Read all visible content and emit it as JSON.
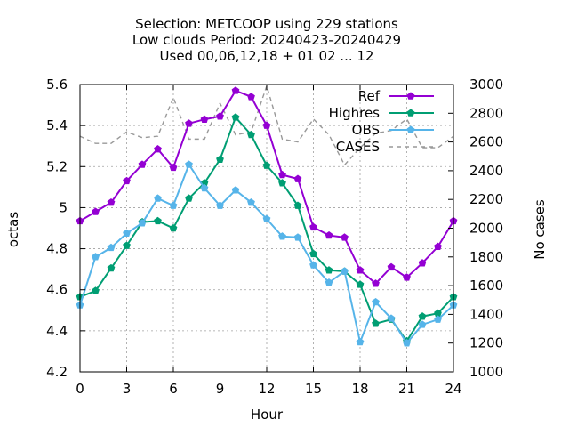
{
  "chart_data": {
    "type": "line",
    "title_lines": [
      "Selection: METCOOP using   229 stations",
      "Low clouds   Period: 20240423-20240429",
      "Used  00,06,12,18 + 01 02 ... 12"
    ],
    "xlabel": "Hour",
    "ylabel": "octas",
    "y2label": "No cases",
    "xlim": [
      0,
      24
    ],
    "ylim": [
      4.2,
      5.6
    ],
    "y2lim": [
      1000,
      3000
    ],
    "xticks": [
      0,
      3,
      6,
      9,
      12,
      15,
      18,
      21,
      24
    ],
    "yticks": [
      4.2,
      4.4,
      4.6,
      4.8,
      5,
      5.2,
      5.4,
      5.6
    ],
    "ytick_labels": [
      "4.2",
      "4.4",
      "4.6",
      "4.8",
      "5",
      "5.2",
      "5.4",
      "5.6"
    ],
    "y2ticks": [
      1000,
      1200,
      1400,
      1600,
      1800,
      2000,
      2200,
      2400,
      2600,
      2800,
      3000
    ],
    "grid": true,
    "legend_position": "top-right",
    "x": [
      0,
      1,
      2,
      3,
      4,
      5,
      6,
      7,
      8,
      9,
      10,
      11,
      12,
      13,
      14,
      15,
      16,
      17,
      18,
      19,
      20,
      21,
      22,
      23,
      24
    ],
    "series": [
      {
        "name": "Ref",
        "color": "#9400d3",
        "marker": "pentagon",
        "axis": "y1",
        "values": [
          4.935,
          4.98,
          5.025,
          5.13,
          5.21,
          5.285,
          5.195,
          5.41,
          5.43,
          5.445,
          5.57,
          5.54,
          5.4,
          5.16,
          5.14,
          4.905,
          4.865,
          4.855,
          4.695,
          4.63,
          4.71,
          4.66,
          4.73,
          4.81,
          4.935
        ]
      },
      {
        "name": "Highres",
        "color": "#009e73",
        "marker": "pentagon",
        "axis": "y1",
        "values": [
          4.565,
          4.595,
          4.705,
          4.815,
          4.93,
          4.935,
          4.9,
          5.045,
          5.12,
          5.235,
          5.44,
          5.355,
          5.205,
          5.12,
          5.01,
          4.775,
          4.695,
          4.69,
          4.625,
          4.435,
          4.455,
          4.35,
          4.47,
          4.485,
          4.565
        ]
      },
      {
        "name": "OBS",
        "color": "#56b4e9",
        "marker": "pentagon",
        "axis": "y1",
        "values": [
          4.525,
          4.76,
          4.805,
          4.875,
          4.925,
          5.045,
          5.01,
          5.21,
          5.095,
          5.01,
          5.085,
          5.025,
          4.945,
          4.86,
          4.855,
          4.72,
          4.635,
          4.69,
          4.345,
          4.54,
          4.46,
          4.34,
          4.43,
          4.455,
          4.525
        ]
      },
      {
        "name": "CASES",
        "color": "#999999",
        "style": "dashed",
        "axis": "y2",
        "values": [
          2640,
          2590,
          2590,
          2670,
          2630,
          2640,
          2910,
          2620,
          2620,
          2870,
          2650,
          2670,
          2990,
          2620,
          2600,
          2760,
          2650,
          2440,
          2560,
          2660,
          2680,
          2760,
          2560,
          2560,
          2640
        ]
      }
    ]
  }
}
